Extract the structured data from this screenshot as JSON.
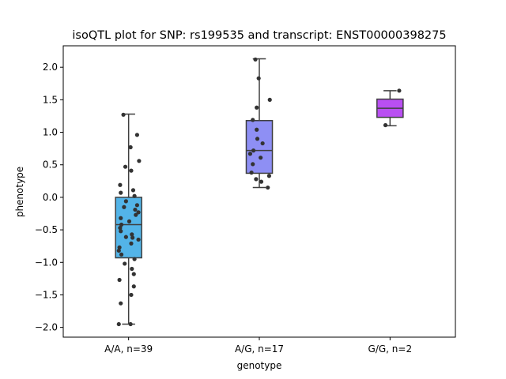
{
  "chart_data": {
    "type": "box",
    "title": "isoQTL plot for SNP: rs199535 and transcript: ENST00000398275",
    "xlabel": "genotype",
    "ylabel": "phenotype",
    "ylim": [
      -2.15,
      2.33
    ],
    "yticks": [
      -2.0,
      -1.5,
      -1.0,
      -0.5,
      0.0,
      0.5,
      1.0,
      1.5,
      2.0
    ],
    "ytick_labels": [
      "−2.0",
      "−1.5",
      "−1.0",
      "−0.5",
      "0.0",
      "0.5",
      "1.0",
      "1.5",
      "2.0"
    ],
    "categories": [
      "A/A, n=39",
      "A/G, n=17",
      "G/G, n=2"
    ],
    "colors": [
      "#53b4e8",
      "#8e8ff4",
      "#b94ff2"
    ],
    "boxes": [
      {
        "category": "A/A, n=39",
        "whisker_low": -1.95,
        "q1": -0.93,
        "median": -0.42,
        "q3": 0.0,
        "whisker_high": 1.28
      },
      {
        "category": "A/G, n=17",
        "whisker_low": 0.15,
        "q1": 0.37,
        "median": 0.72,
        "q3": 1.18,
        "whisker_high": 2.13
      },
      {
        "category": "G/G, n=2",
        "whisker_low": 1.1,
        "q1": 1.23,
        "median": 1.37,
        "q3": 1.51,
        "whisker_high": 1.64
      }
    ],
    "points": [
      [
        [
          -0.08,
          1.27
        ],
        [
          0.13,
          0.96
        ],
        [
          0.03,
          0.77
        ],
        [
          0.16,
          0.56
        ],
        [
          -0.05,
          0.47
        ],
        [
          0.04,
          0.41
        ],
        [
          -0.13,
          0.19
        ],
        [
          0.07,
          0.11
        ],
        [
          -0.12,
          0.07
        ],
        [
          0.09,
          0.02
        ],
        [
          -0.04,
          -0.06
        ],
        [
          0.13,
          -0.12
        ],
        [
          0.1,
          -0.19
        ],
        [
          -0.07,
          -0.15
        ],
        [
          0.15,
          -0.23
        ],
        [
          0.11,
          -0.27
        ],
        [
          -0.12,
          -0.32
        ],
        [
          0.01,
          -0.37
        ],
        [
          -0.11,
          -0.42
        ],
        [
          -0.13,
          -0.47
        ],
        [
          -0.12,
          -0.52
        ],
        [
          0.05,
          -0.57
        ],
        [
          -0.04,
          -0.61
        ],
        [
          0.06,
          -0.62
        ],
        [
          0.15,
          -0.65
        ],
        [
          0.04,
          -0.71
        ],
        [
          -0.14,
          -0.77
        ],
        [
          -0.15,
          -0.82
        ],
        [
          -0.11,
          -0.88
        ],
        [
          0.09,
          -0.95
        ],
        [
          -0.06,
          -1.02
        ],
        [
          0.05,
          -1.1
        ],
        [
          0.08,
          -1.18
        ],
        [
          -0.14,
          -1.27
        ],
        [
          0.08,
          -1.37
        ],
        [
          0.04,
          -1.5
        ],
        [
          -0.12,
          -1.63
        ],
        [
          -0.15,
          -1.95
        ],
        [
          0.03,
          -1.95
        ]
      ],
      [
        [
          -0.06,
          2.12
        ],
        [
          -0.01,
          1.83
        ],
        [
          0.16,
          1.5
        ],
        [
          -0.04,
          1.38
        ],
        [
          -0.1,
          1.19
        ],
        [
          -0.04,
          1.04
        ],
        [
          -0.03,
          0.9
        ],
        [
          0.05,
          0.83
        ],
        [
          -0.09,
          0.72
        ],
        [
          -0.14,
          0.67
        ],
        [
          0.02,
          0.61
        ],
        [
          -0.1,
          0.51
        ],
        [
          -0.12,
          0.38
        ],
        [
          0.15,
          0.33
        ],
        [
          -0.05,
          0.28
        ],
        [
          0.03,
          0.24
        ],
        [
          0.13,
          0.15
        ]
      ],
      [
        [
          0.14,
          1.64
        ],
        [
          -0.07,
          1.11
        ]
      ]
    ]
  }
}
